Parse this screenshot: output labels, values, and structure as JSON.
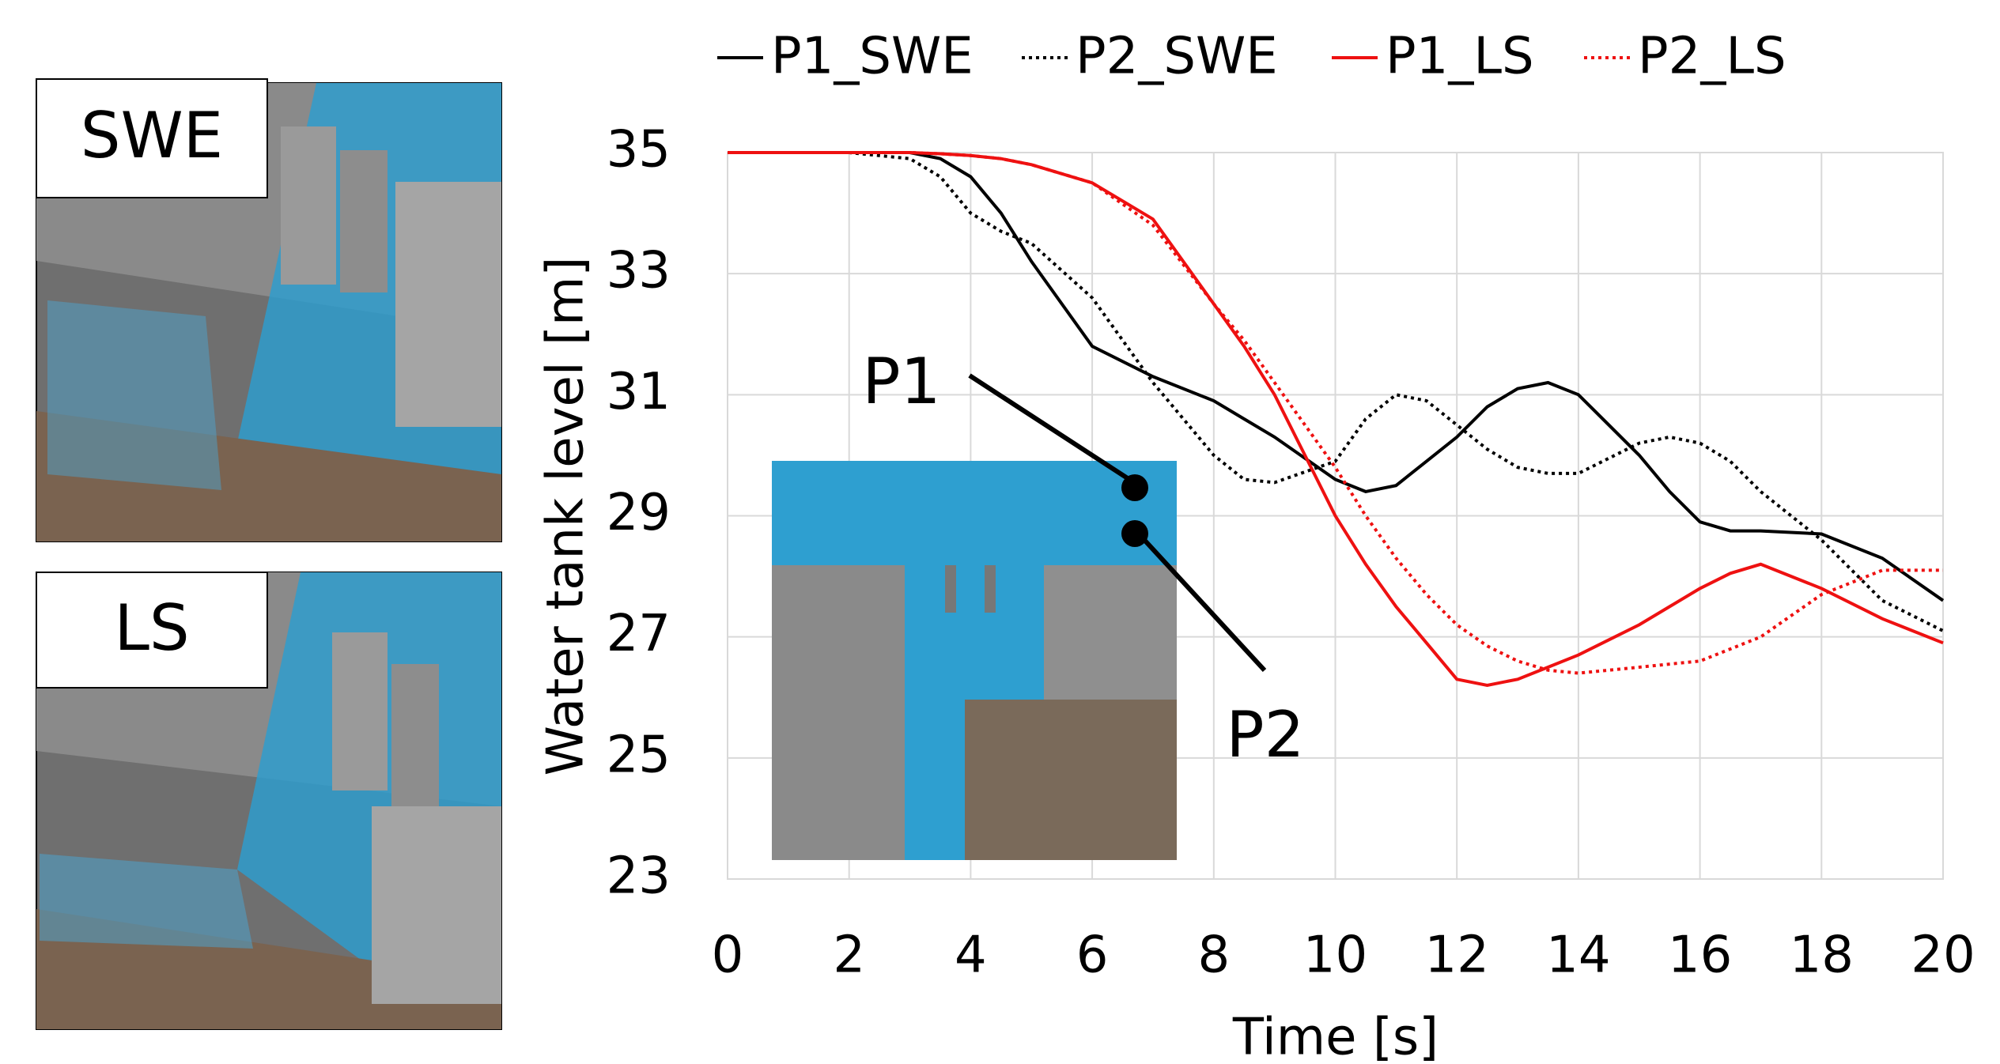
{
  "chart_data": {
    "type": "line",
    "xlabel": "Time [s]",
    "ylabel": "Water tank level [m]",
    "x": [
      0,
      1,
      2,
      3,
      3.5,
      4,
      4.5,
      5,
      6,
      7,
      8,
      8.5,
      9,
      10,
      10.5,
      11,
      11.5,
      12,
      12.5,
      13,
      13.5,
      14,
      15,
      15.5,
      16,
      16.5,
      17,
      18,
      19,
      20
    ],
    "series": [
      {
        "name": "P1_SWE",
        "color": "#000000",
        "dash": "solid",
        "values": [
          35,
          35,
          35,
          35,
          34.9,
          34.6,
          34.0,
          33.2,
          31.8,
          31.3,
          30.9,
          30.6,
          30.3,
          29.6,
          29.4,
          29.5,
          29.9,
          30.3,
          30.8,
          31.1,
          31.2,
          31.0,
          30.0,
          29.4,
          28.9,
          28.75,
          28.75,
          28.7,
          28.3,
          27.6
        ]
      },
      {
        "name": "P2_SWE",
        "color": "#000000",
        "dash": "dotted",
        "values": [
          35,
          35,
          35,
          34.9,
          34.6,
          34.0,
          33.7,
          33.5,
          32.6,
          31.2,
          30.0,
          29.6,
          29.55,
          29.9,
          30.6,
          31.0,
          30.9,
          30.5,
          30.1,
          29.8,
          29.7,
          29.7,
          30.2,
          30.3,
          30.2,
          29.9,
          29.4,
          28.6,
          27.6,
          27.1
        ]
      },
      {
        "name": "P1_LS",
        "color": "#ee1111",
        "dash": "solid",
        "values": [
          35,
          35,
          35,
          35,
          34.98,
          34.95,
          34.9,
          34.8,
          34.5,
          33.9,
          32.5,
          31.8,
          31.0,
          29.0,
          28.2,
          27.5,
          26.9,
          26.3,
          26.2,
          26.3,
          26.5,
          26.7,
          27.2,
          27.5,
          27.8,
          28.05,
          28.2,
          27.8,
          27.3,
          26.9
        ]
      },
      {
        "name": "P2_LS",
        "color": "#ee1111",
        "dash": "dotted",
        "values": [
          35,
          35,
          35,
          35,
          34.98,
          34.95,
          34.9,
          34.8,
          34.5,
          33.8,
          32.5,
          31.9,
          31.2,
          29.8,
          29.0,
          28.3,
          27.7,
          27.2,
          26.85,
          26.6,
          26.45,
          26.4,
          26.5,
          26.55,
          26.6,
          26.8,
          27.0,
          27.7,
          28.1,
          28.1
        ]
      }
    ],
    "xlim": [
      0,
      20
    ],
    "xticks": [
      0,
      2,
      4,
      6,
      8,
      10,
      12,
      14,
      16,
      18,
      20
    ],
    "ylim": [
      23,
      35
    ],
    "yticks": [
      23,
      25,
      27,
      29,
      31,
      33,
      35
    ],
    "grid": true,
    "legend": "top",
    "annotations": [
      "P1",
      "P2"
    ],
    "panel_labels": [
      {
        "text": "SWE",
        "color": "#000000"
      },
      {
        "text": "LS",
        "color": "#ee1111"
      }
    ]
  }
}
